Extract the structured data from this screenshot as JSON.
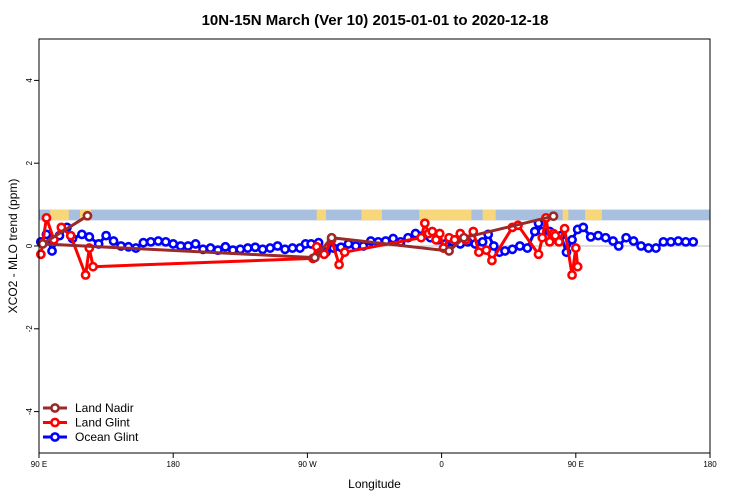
{
  "chart_data": {
    "type": "line",
    "title": "10N-15N March (Ver 10)   2015-01-01 to 2020-12-18",
    "xlabel": "Longitude",
    "ylabel": "XCO2 - MLO trend (ppm)",
    "xlim": [
      -90,
      270
    ],
    "ylim": [
      -5,
      5
    ],
    "x_ticks": [
      {
        "value": -90,
        "label": "90 E"
      },
      {
        "value": -18,
        "label": "180"
      },
      {
        "value": 54,
        "label": "90 W"
      },
      {
        "value": 126,
        "label": "0"
      },
      {
        "value": 198,
        "label": "90 E"
      },
      {
        "value": 270,
        "label": "180"
      }
    ],
    "y_ticks": [
      {
        "value": -4,
        "label": "-4"
      },
      {
        "value": -2,
        "label": "-2"
      },
      {
        "value": 0,
        "label": "0"
      },
      {
        "value": 2,
        "label": "2"
      },
      {
        "value": 4,
        "label": "4"
      }
    ],
    "land_band": {
      "y_range": [
        0.62,
        0.88
      ],
      "ocean_color": "#a9bfdf",
      "land_color": "#f8d77a",
      "land_x_ranges": [
        [
          -84,
          -74
        ],
        [
          -68,
          -62
        ],
        [
          59,
          64
        ],
        [
          83,
          94
        ],
        [
          114,
          127
        ],
        [
          127,
          142
        ],
        [
          148,
          155
        ],
        [
          191,
          194
        ],
        [
          203,
          212
        ]
      ]
    },
    "legend_position": "bottom-left",
    "series": [
      {
        "name": "Land Nadir",
        "color": "#9a2a2a",
        "points": [
          [
            -64,
            0.73
          ],
          [
            -88,
            0.05
          ],
          [
            58,
            -0.28
          ],
          [
            67,
            0.2
          ],
          [
            130,
            -0.12
          ],
          [
            138,
            0.2
          ],
          [
            186,
            0.72
          ]
        ]
      },
      {
        "name": "Land Glint",
        "color": "#ff0000",
        "points": [
          [
            -89,
            -0.2
          ],
          [
            -86,
            0.68
          ],
          [
            -82,
            0.15
          ],
          [
            -78,
            0.45
          ],
          [
            -73,
            0.25
          ],
          [
            -65,
            -0.7
          ],
          [
            -63,
            -0.05
          ],
          [
            -61,
            -0.5
          ],
          [
            57,
            -0.3
          ],
          [
            59,
            -0.02
          ],
          [
            61,
            -0.15
          ],
          [
            63,
            -0.2
          ],
          [
            67,
            0.15
          ],
          [
            71,
            -0.45
          ],
          [
            74,
            -0.15
          ],
          [
            115,
            0.2
          ],
          [
            117,
            0.55
          ],
          [
            119,
            0.3
          ],
          [
            121,
            0.35
          ],
          [
            123,
            0.15
          ],
          [
            125,
            0.3
          ],
          [
            127,
            -0.05
          ],
          [
            130,
            0.2
          ],
          [
            133,
            0.15
          ],
          [
            136,
            0.3
          ],
          [
            139,
            0.15
          ],
          [
            143,
            0.35
          ],
          [
            146,
            -0.15
          ],
          [
            150,
            -0.1
          ],
          [
            153,
            -0.35
          ],
          [
            164,
            0.45
          ],
          [
            167,
            0.5
          ],
          [
            178,
            -0.2
          ],
          [
            180,
            0.2
          ],
          [
            182,
            0.68
          ],
          [
            184,
            0.1
          ],
          [
            186,
            0.3
          ],
          [
            187,
            0.25
          ],
          [
            189,
            0.1
          ],
          [
            192,
            0.42
          ],
          [
            196,
            -0.7
          ],
          [
            198,
            -0.05
          ],
          [
            199,
            -0.5
          ]
        ]
      },
      {
        "name": "Ocean Glint",
        "color": "#0000ff",
        "points": [
          [
            -89,
            0.1
          ],
          [
            -86,
            0.28
          ],
          [
            -83,
            -0.12
          ],
          [
            -79,
            0.25
          ],
          [
            -75,
            0.45
          ],
          [
            -72,
            0.18
          ],
          [
            -67,
            0.28
          ],
          [
            -63,
            0.22
          ],
          [
            -58,
            0.05
          ],
          [
            -54,
            0.25
          ],
          [
            -50,
            0.12
          ],
          [
            -46,
            0.0
          ],
          [
            -42,
            -0.02
          ],
          [
            -38,
            -0.05
          ],
          [
            -34,
            0.08
          ],
          [
            -30,
            0.1
          ],
          [
            -26,
            0.12
          ],
          [
            -22,
            0.1
          ],
          [
            -18,
            0.05
          ],
          [
            -14,
            0.0
          ],
          [
            -10,
            0.0
          ],
          [
            -6,
            0.05
          ],
          [
            -2,
            -0.08
          ],
          [
            2,
            -0.05
          ],
          [
            6,
            -0.1
          ],
          [
            10,
            -0.02
          ],
          [
            14,
            -0.1
          ],
          [
            18,
            -0.08
          ],
          [
            22,
            -0.05
          ],
          [
            26,
            -0.03
          ],
          [
            30,
            -0.08
          ],
          [
            34,
            -0.05
          ],
          [
            38,
            0.0
          ],
          [
            42,
            -0.08
          ],
          [
            46,
            -0.05
          ],
          [
            50,
            -0.05
          ],
          [
            53,
            0.05
          ],
          [
            56,
            0.05
          ],
          [
            60,
            0.08
          ],
          [
            64,
            -0.15
          ],
          [
            68,
            -0.05
          ],
          [
            72,
            -0.03
          ],
          [
            76,
            0.05
          ],
          [
            80,
            0.0
          ],
          [
            84,
            0.0
          ],
          [
            88,
            0.12
          ],
          [
            92,
            0.1
          ],
          [
            96,
            0.12
          ],
          [
            100,
            0.18
          ],
          [
            104,
            0.1
          ],
          [
            108,
            0.2
          ],
          [
            112,
            0.3
          ],
          [
            116,
            0.25
          ],
          [
            120,
            0.2
          ],
          [
            124,
            0.15
          ],
          [
            128,
            0.05
          ],
          [
            132,
            0.1
          ],
          [
            136,
            0.05
          ],
          [
            140,
            0.1
          ],
          [
            144,
            0.05
          ],
          [
            148,
            0.1
          ],
          [
            151,
            0.28
          ],
          [
            154,
            0.0
          ],
          [
            157,
            -0.15
          ],
          [
            160,
            -0.12
          ],
          [
            164,
            -0.08
          ],
          [
            168,
            0.0
          ],
          [
            172,
            -0.05
          ],
          [
            176,
            0.35
          ],
          [
            178,
            0.55
          ],
          [
            180,
            0.35
          ],
          [
            184,
            0.35
          ],
          [
            187,
            0.18
          ],
          [
            190,
            0.25
          ],
          [
            193,
            -0.15
          ],
          [
            196,
            0.15
          ],
          [
            199,
            0.4
          ],
          [
            202,
            0.45
          ],
          [
            206,
            0.22
          ],
          [
            210,
            0.25
          ],
          [
            214,
            0.2
          ],
          [
            218,
            0.12
          ],
          [
            221,
            0.0
          ],
          [
            225,
            0.2
          ],
          [
            229,
            0.12
          ],
          [
            233,
            0.0
          ],
          [
            237,
            -0.05
          ],
          [
            241,
            -0.05
          ],
          [
            245,
            0.1
          ],
          [
            249,
            0.1
          ],
          [
            253,
            0.12
          ],
          [
            257,
            0.1
          ],
          [
            261,
            0.1
          ]
        ]
      }
    ]
  }
}
